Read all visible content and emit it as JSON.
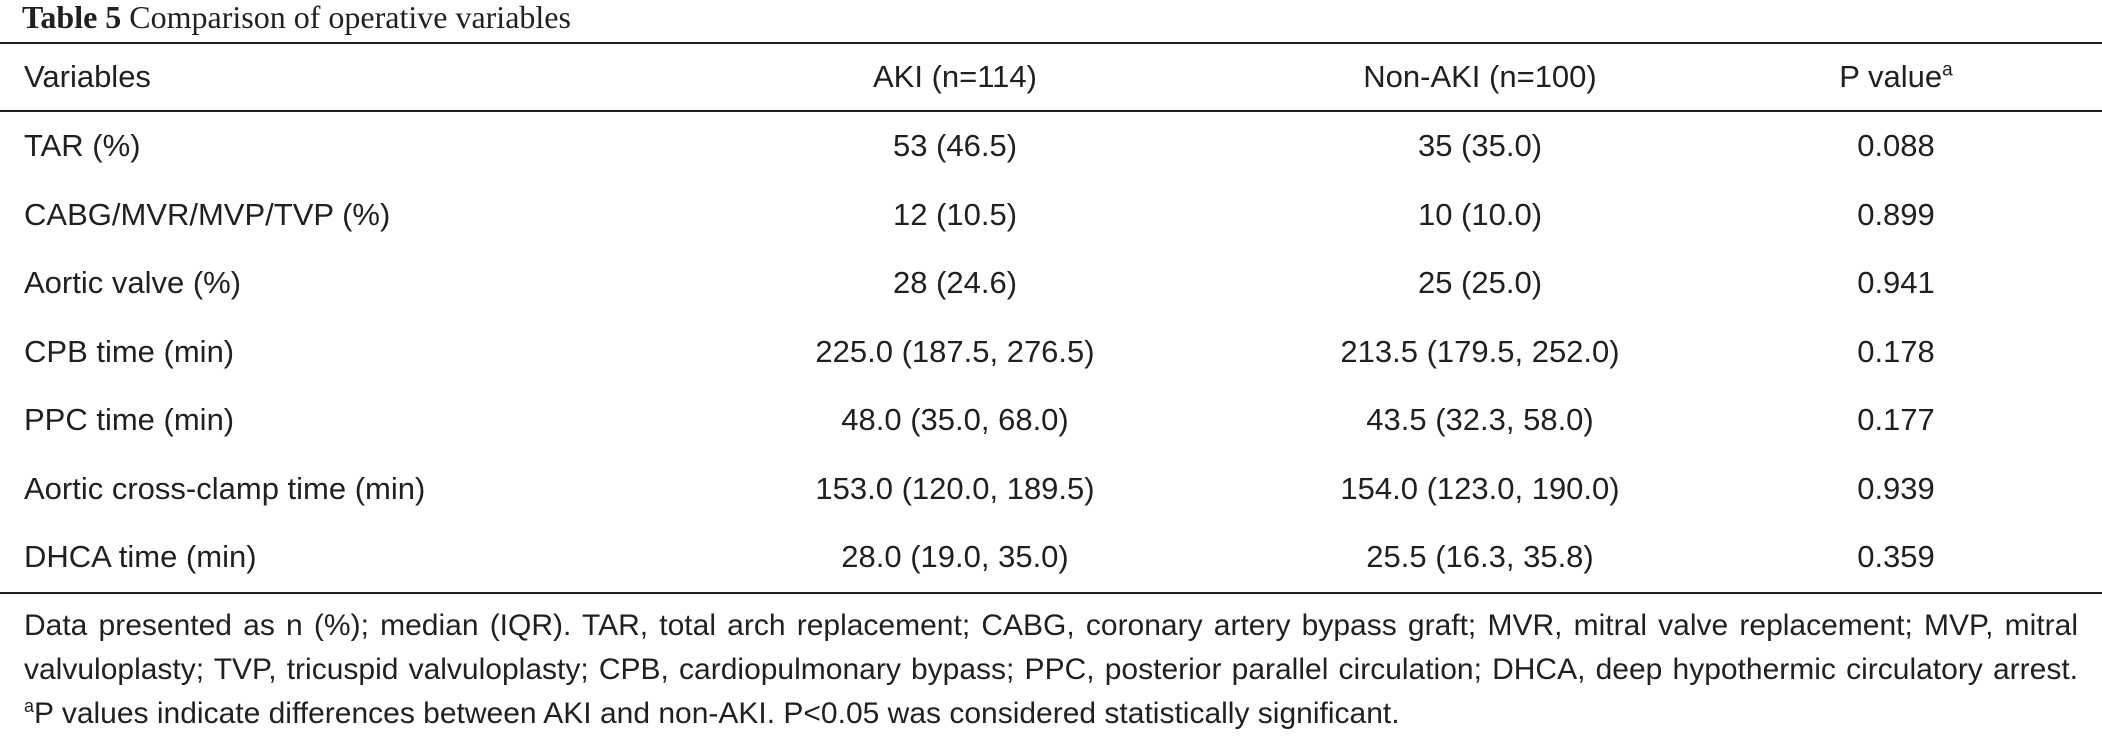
{
  "caption": {
    "label": "Table 5",
    "text": "Comparison of operative variables"
  },
  "table": {
    "headers": [
      "Variables",
      "AKI (n=114)",
      "Non-AKI (n=100)",
      "P value"
    ],
    "header_superscript": "a",
    "rows": [
      [
        "TAR (%)",
        "53 (46.5)",
        "35 (35.0)",
        "0.088"
      ],
      [
        "CABG/MVR/MVP/TVP (%)",
        "12 (10.5)",
        "10 (10.0)",
        "0.899"
      ],
      [
        "Aortic valve (%)",
        "28 (24.6)",
        "25 (25.0)",
        "0.941"
      ],
      [
        "CPB time (min)",
        "225.0 (187.5, 276.5)",
        "213.5 (179.5, 252.0)",
        "0.178"
      ],
      [
        "PPC time (min)",
        "48.0 (35.0, 68.0)",
        "43.5 (32.3, 58.0)",
        "0.177"
      ],
      [
        "Aortic cross-clamp time (min)",
        "153.0 (120.0, 189.5)",
        "154.0 (123.0, 190.0)",
        "0.939"
      ],
      [
        "DHCA time (min)",
        "28.0 (19.0, 35.0)",
        "25.5 (16.3, 35.8)",
        "0.359"
      ]
    ]
  },
  "footnote": {
    "text1": "Data presented as n (%); median (IQR). TAR, total arch replacement; CABG, coronary artery bypass graft; MVR, mitral valve replacement; MVP, mitral valvuloplasty; TVP, tricuspid valvuloplasty; CPB, cardiopulmonary bypass; PPC, posterior parallel circulation; DHCA, deep hypothermic circulatory arrest. ",
    "superscript": "a",
    "text2": "P values indicate differences between AKI and non-AKI. P<0.05 was considered statistically significant."
  }
}
